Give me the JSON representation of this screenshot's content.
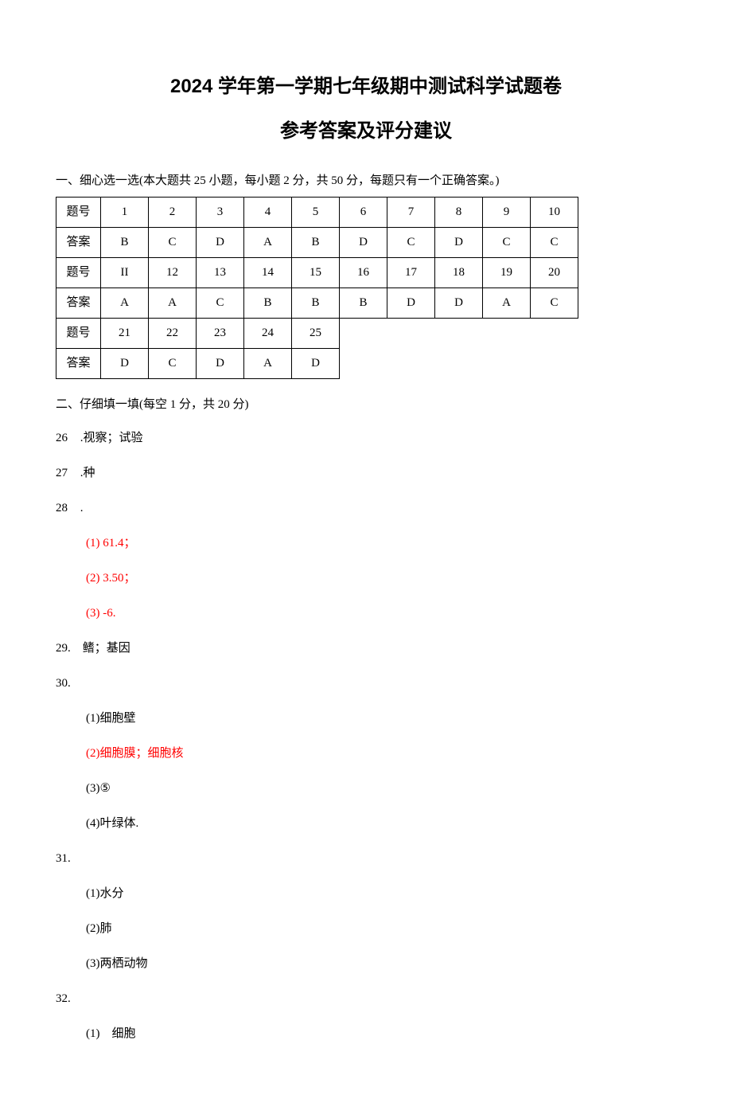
{
  "titles": {
    "main": "2024 学年第一学期七年级期中测试科学试题卷",
    "sub": "参考答案及评分建议"
  },
  "section1": {
    "heading": "一、细心选一选(本大题共 25 小题，每小题 2 分，共 50 分，每题只有一个正确答案。)",
    "label_qnum": "题号",
    "label_ans": "答案",
    "rows": [
      {
        "nums": [
          "1",
          "2",
          "3",
          "4",
          "5",
          "6",
          "7",
          "8",
          "9",
          "10"
        ],
        "ans": [
          "B",
          "C",
          "D",
          "A",
          "B",
          "D",
          "C",
          "D",
          "C",
          "C"
        ]
      },
      {
        "nums": [
          "II",
          "12",
          "13",
          "14",
          "15",
          "16",
          "17",
          "18",
          "19",
          "20"
        ],
        "ans": [
          "A",
          "A",
          "C",
          "B",
          "B",
          "B",
          "D",
          "D",
          "A",
          "C"
        ]
      },
      {
        "nums": [
          "21",
          "22",
          "23",
          "24",
          "25"
        ],
        "ans": [
          "D",
          "C",
          "D",
          "A",
          "D"
        ]
      }
    ],
    "table_cols": 10,
    "border_color": "#000000"
  },
  "section2": {
    "heading": "二、仔细填一填(每空 1 分，共 20 分)",
    "items": [
      {
        "num": "26",
        "sep": " .",
        "text": "视察；试验",
        "subs": []
      },
      {
        "num": "27",
        "sep": " .",
        "text": "种",
        "subs": []
      },
      {
        "num": "28",
        "sep": " .",
        "text": "",
        "subs": [
          {
            "label": "(1)",
            "text": " 61.4；",
            "red": true
          },
          {
            "label": "(2)",
            "text": " 3.50；",
            "red": true
          },
          {
            "label": "(3)",
            "text": " -6.",
            "red": true
          }
        ]
      },
      {
        "num": "29.",
        "sep": "    ",
        "text": "鳍；基因",
        "subs": []
      },
      {
        "num": "30.",
        "sep": "",
        "text": "",
        "subs": [
          {
            "label": "(1)",
            "text": "细胞壁",
            "red": false
          },
          {
            "label": "(2)",
            "text": "细胞膜；细胞核",
            "red": true
          },
          {
            "label": "(3)",
            "text": "⑤",
            "red": false
          },
          {
            "label": "(4)",
            "text": "叶绿体.",
            "red": false
          }
        ]
      },
      {
        "num": "31.",
        "sep": "",
        "text": "",
        "subs": [
          {
            "label": "(1)",
            "text": "水分",
            "red": false
          },
          {
            "label": "(2)",
            "text": "肺",
            "red": false
          },
          {
            "label": "(3)",
            "text": "两栖动物",
            "red": false
          }
        ]
      },
      {
        "num": "32.",
        "sep": "",
        "text": "",
        "subs": [
          {
            "label": "(1)",
            "text": "    细胞",
            "red": false
          }
        ]
      }
    ]
  },
  "colors": {
    "text": "#000000",
    "red": "#ff0000",
    "background": "#ffffff",
    "table_border": "#000000"
  },
  "typography": {
    "title_fontsize_pt": 18,
    "body_fontsize_pt": 11,
    "font_family_title": "SimHei",
    "font_family_body": "SimSun"
  }
}
